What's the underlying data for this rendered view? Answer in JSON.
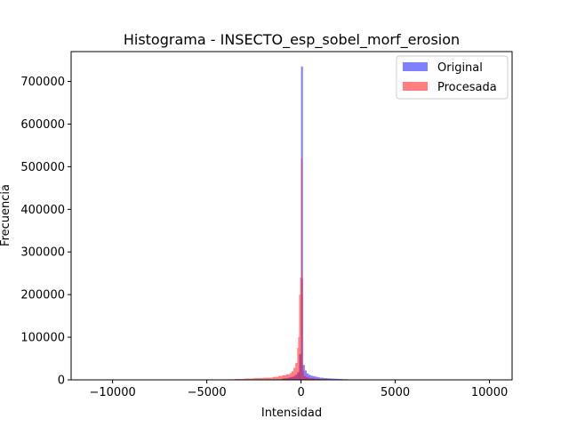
{
  "chart_data": {
    "type": "bar",
    "title": "Histograma - INSECTO_esp_sobel_morf_erosion",
    "xlabel": "Intensidad",
    "ylabel": "Frecuencia",
    "xlim": [
      -12200,
      11200
    ],
    "ylim": [
      0,
      770000
    ],
    "xticks": [
      -10000,
      -5000,
      0,
      5000,
      10000
    ],
    "xtick_labels": [
      "−10000",
      "−5000",
      "0",
      "5000",
      "10000"
    ],
    "yticks": [
      0,
      100000,
      200000,
      300000,
      400000,
      500000,
      600000,
      700000
    ],
    "ytick_labels": [
      "0",
      "100000",
      "200000",
      "300000",
      "400000",
      "500000",
      "600000",
      "700000"
    ],
    "grid": false,
    "legend_position": "top-right",
    "series": [
      {
        "name": "Original",
        "color": "#0000ff",
        "alpha": 0.5,
        "bins": [
          [
            -1000,
            -900,
            3000
          ],
          [
            -900,
            -800,
            3500
          ],
          [
            -800,
            -700,
            4000
          ],
          [
            -700,
            -600,
            5000
          ],
          [
            -600,
            -500,
            6000
          ],
          [
            -500,
            -400,
            7000
          ],
          [
            -400,
            -300,
            9000
          ],
          [
            -300,
            -200,
            12000
          ],
          [
            -200,
            -100,
            18000
          ],
          [
            -100,
            0,
            60000
          ],
          [
            0,
            100,
            735000
          ],
          [
            100,
            200,
            35000
          ],
          [
            200,
            300,
            22000
          ],
          [
            300,
            400,
            15000
          ],
          [
            400,
            500,
            12000
          ],
          [
            500,
            600,
            10000
          ],
          [
            600,
            700,
            9000
          ],
          [
            700,
            800,
            8000
          ],
          [
            800,
            900,
            7000
          ],
          [
            900,
            1000,
            6000
          ],
          [
            1000,
            1200,
            5000
          ],
          [
            1200,
            1400,
            4000
          ],
          [
            1400,
            1600,
            3500
          ],
          [
            1600,
            1800,
            3000
          ],
          [
            1800,
            2000,
            2500
          ],
          [
            2000,
            2200,
            2000
          ],
          [
            2200,
            2500,
            1500
          ],
          [
            2500,
            3000,
            800
          ],
          [
            3000,
            4000,
            300
          ],
          [
            4000,
            10500,
            50
          ]
        ]
      },
      {
        "name": "Procesada",
        "color": "#ff0000",
        "alpha": 0.5,
        "bins": [
          [
            -4000,
            -3500,
            1200
          ],
          [
            -3500,
            -3000,
            2000
          ],
          [
            -3000,
            -2500,
            3000
          ],
          [
            -2500,
            -2000,
            4000
          ],
          [
            -2000,
            -1500,
            5000
          ],
          [
            -1500,
            -1200,
            7000
          ],
          [
            -1200,
            -1000,
            9000
          ],
          [
            -1000,
            -800,
            11000
          ],
          [
            -800,
            -600,
            13000
          ],
          [
            -600,
            -500,
            16000
          ],
          [
            -500,
            -400,
            20000
          ],
          [
            -400,
            -300,
            28000
          ],
          [
            -300,
            -200,
            40000
          ],
          [
            -200,
            -150,
            75000
          ],
          [
            -150,
            -100,
            100000
          ],
          [
            -100,
            -50,
            200000
          ],
          [
            -50,
            0,
            240000
          ],
          [
            0,
            50,
            520000
          ],
          [
            50,
            100,
            237000
          ],
          [
            100,
            150,
            20000
          ],
          [
            150,
            250,
            9000
          ],
          [
            250,
            400,
            6000
          ],
          [
            400,
            700,
            4000
          ],
          [
            700,
            1000,
            2500
          ],
          [
            1000,
            1500,
            1500
          ],
          [
            1500,
            2500,
            600
          ]
        ]
      }
    ]
  }
}
